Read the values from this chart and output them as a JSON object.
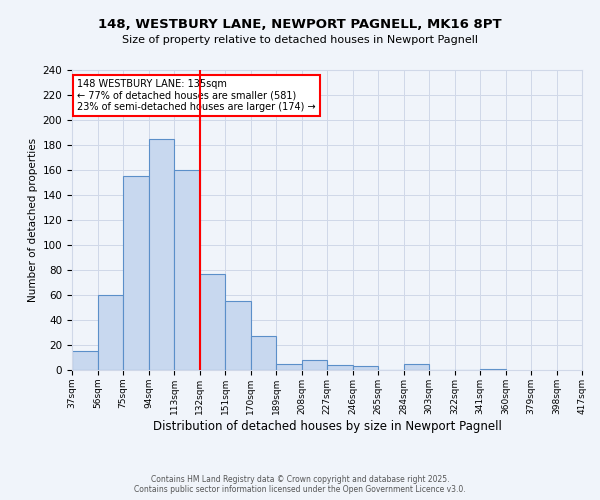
{
  "title_line1": "148, WESTBURY LANE, NEWPORT PAGNELL, MK16 8PT",
  "title_line2": "Size of property relative to detached houses in Newport Pagnell",
  "bar_values": [
    15,
    60,
    155,
    185,
    160,
    77,
    55,
    27,
    5,
    8,
    4,
    3,
    0,
    5,
    0,
    0,
    1
  ],
  "bin_edges": [
    37,
    56,
    75,
    94,
    113,
    132,
    151,
    170,
    189,
    208,
    227,
    246,
    265,
    284,
    303,
    322,
    341,
    360,
    379,
    398,
    417
  ],
  "bin_labels": [
    "37sqm",
    "56sqm",
    "75sqm",
    "94sqm",
    "113sqm",
    "132sqm",
    "151sqm",
    "170sqm",
    "189sqm",
    "208sqm",
    "227sqm",
    "246sqm",
    "265sqm",
    "284sqm",
    "303sqm",
    "322sqm",
    "341sqm",
    "360sqm",
    "379sqm",
    "398sqm",
    "417sqm"
  ],
  "bar_color": "#c8d8ef",
  "bar_edge_color": "#5b8fc9",
  "vline_x": 132,
  "vline_color": "red",
  "xlabel": "Distribution of detached houses by size in Newport Pagnell",
  "ylabel": "Number of detached properties",
  "ylim": [
    0,
    240
  ],
  "yticks": [
    0,
    20,
    40,
    60,
    80,
    100,
    120,
    140,
    160,
    180,
    200,
    220,
    240
  ],
  "annotation_title": "148 WESTBURY LANE: 135sqm",
  "annotation_line2": "← 77% of detached houses are smaller (581)",
  "annotation_line3": "23% of semi-detached houses are larger (174) →",
  "annotation_box_color": "white",
  "annotation_box_edge": "red",
  "footer_line1": "Contains HM Land Registry data © Crown copyright and database right 2025.",
  "footer_line2": "Contains public sector information licensed under the Open Government Licence v3.0.",
  "grid_color": "#d0d8e8",
  "bg_color": "#f0f4fa"
}
